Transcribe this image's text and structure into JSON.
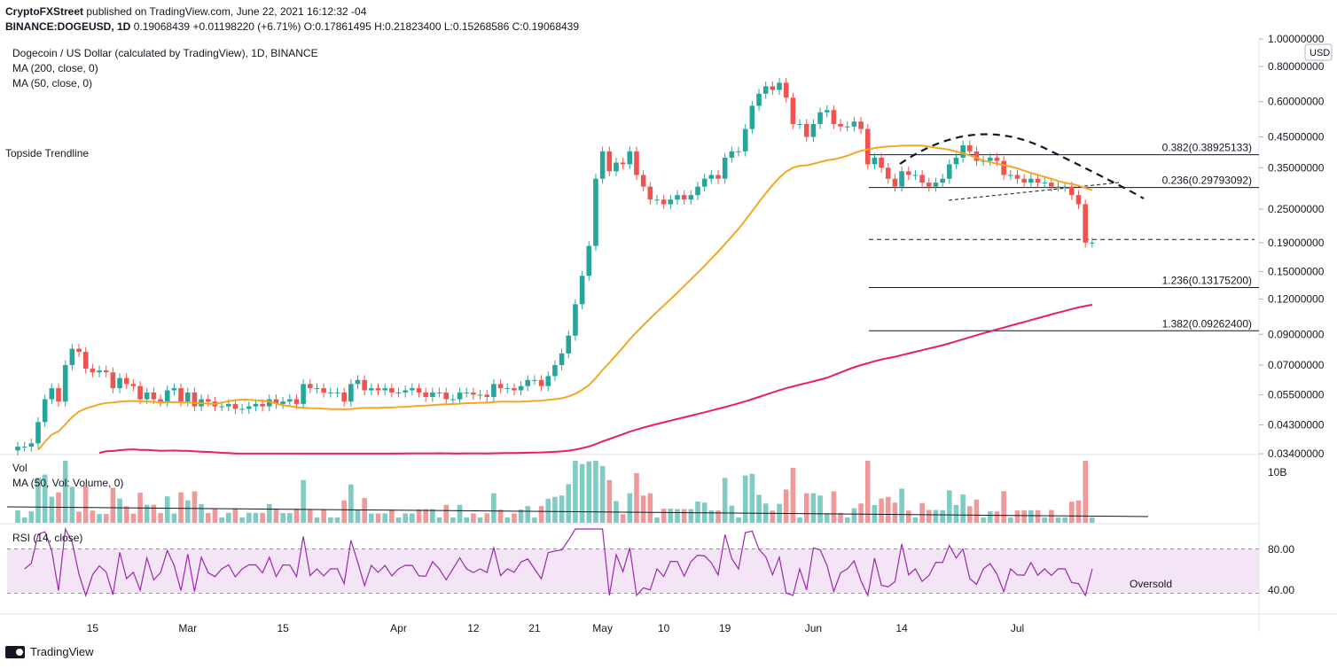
{
  "header": {
    "publisher": "CryptoFXStreet",
    "published_text": "published on TradingView.com, June 22, 2021 16:12:32 -04",
    "symbol": "BINANCE:DOGEUSD, 1D",
    "last": "0.19068439",
    "change": "+0.01198220 (+6.71%)",
    "o_label": "O:",
    "o_value": "0.17861495",
    "h_label": "H:",
    "h_value": "0.21823400",
    "l_label": "L:",
    "l_value": "0.15268586",
    "c_label": "C:",
    "c_value": "0.19068439"
  },
  "legend": {
    "title": "Dogecoin / US Dollar (calculated by TradingView), 1D, BINANCE",
    "ma200": "MA (200, close, 0)",
    "ma50": "MA (50, close, 0)",
    "vol": "Vol",
    "vol_ma": "MA (50, Vol: Volume, 0)",
    "rsi": "RSI (14, close)"
  },
  "footer": {
    "brand": "TradingView"
  },
  "colors": {
    "up": "#26a69a",
    "down": "#ef5350",
    "ma50": "#f5a623",
    "ma200": "#e91e63",
    "rsi": "#9c27b0",
    "rsi_band": "#f3e5f5",
    "vol_up": "#80cbc4",
    "vol_down": "#ef9a9a"
  },
  "chart_data": {
    "type": "candlestick",
    "title": "Dogecoin / US Dollar (calculated by TradingView), 1D, BINANCE",
    "currency": "USD",
    "scale": "log",
    "ylim": [
      0.034,
      1.0
    ],
    "y_ticks": [
      "1.00000000",
      "0.80000000",
      "0.60000000",
      "0.45000000",
      "0.35000000",
      "0.25000000",
      "0.19000000",
      "0.15000000",
      "0.12000000",
      "0.09000000",
      "0.07000000",
      "0.05500000",
      "0.04300000",
      "0.03400000"
    ],
    "y_tick_values": [
      1.0,
      0.8,
      0.6,
      0.45,
      0.35,
      0.25,
      0.19,
      0.15,
      0.12,
      0.09,
      0.07,
      0.055,
      0.043,
      0.034
    ],
    "x_ticks": [
      "15",
      "Mar",
      "15",
      "Apr",
      "12",
      "21",
      "May",
      "10",
      "19",
      "Jun",
      "14",
      "Jul"
    ],
    "x_tick_dates": [
      "2021-02-15",
      "2021-03-01",
      "2021-03-15",
      "2021-04-01",
      "2021-04-12",
      "2021-04-21",
      "2021-05-01",
      "2021-05-10",
      "2021-05-19",
      "2021-06-01",
      "2021-06-14",
      "2021-07-01"
    ],
    "date_range": [
      "2021-02-04",
      "2021-06-22"
    ],
    "fib_levels": [
      {
        "label": "0.382(0.38925133)",
        "value": 0.38925133
      },
      {
        "label": "0.236(0.29793092)",
        "value": 0.29793092
      },
      {
        "label": "1.236(0.13175200)",
        "value": 0.131752
      },
      {
        "label": "1.382(0.09262400)",
        "value": 0.092624
      }
    ],
    "support_dashed": 0.195,
    "annotations": [
      "Topside Trendline"
    ],
    "closes": [
      0.036,
      0.036,
      0.037,
      0.044,
      0.053,
      0.058,
      0.052,
      0.07,
      0.08,
      0.078,
      0.068,
      0.066,
      0.067,
      0.066,
      0.058,
      0.063,
      0.06,
      0.059,
      0.053,
      0.056,
      0.053,
      0.052,
      0.057,
      0.058,
      0.052,
      0.056,
      0.05,
      0.053,
      0.052,
      0.05,
      0.05,
      0.051,
      0.049,
      0.049,
      0.05,
      0.051,
      0.05,
      0.053,
      0.051,
      0.052,
      0.053,
      0.051,
      0.06,
      0.058,
      0.058,
      0.056,
      0.056,
      0.056,
      0.052,
      0.06,
      0.062,
      0.057,
      0.058,
      0.057,
      0.058,
      0.056,
      0.056,
      0.057,
      0.058,
      0.056,
      0.054,
      0.056,
      0.056,
      0.053,
      0.053,
      0.056,
      0.056,
      0.055,
      0.055,
      0.054,
      0.06,
      0.058,
      0.058,
      0.057,
      0.059,
      0.062,
      0.062,
      0.059,
      0.064,
      0.07,
      0.077,
      0.089,
      0.115,
      0.145,
      0.185,
      0.32,
      0.4,
      0.34,
      0.365,
      0.36,
      0.4,
      0.33,
      0.3,
      0.27,
      0.27,
      0.26,
      0.27,
      0.28,
      0.27,
      0.28,
      0.3,
      0.32,
      0.33,
      0.32,
      0.38,
      0.4,
      0.4,
      0.48,
      0.58,
      0.64,
      0.68,
      0.66,
      0.7,
      0.62,
      0.5,
      0.5,
      0.45,
      0.5,
      0.55,
      0.56,
      0.5,
      0.49,
      0.49,
      0.51,
      0.48,
      0.36,
      0.38,
      0.35,
      0.32,
      0.3,
      0.34,
      0.33,
      0.33,
      0.31,
      0.3,
      0.31,
      0.32,
      0.36,
      0.38,
      0.42,
      0.4,
      0.37,
      0.37,
      0.38,
      0.37,
      0.33,
      0.33,
      0.32,
      0.31,
      0.32,
      0.31,
      0.31,
      0.3,
      0.3,
      0.3,
      0.28,
      0.26,
      0.19,
      0.19
    ]
  }
}
